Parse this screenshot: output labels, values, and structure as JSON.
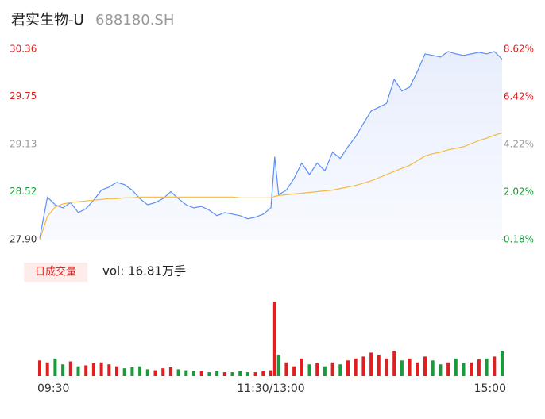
{
  "header": {
    "title": "君实生物-U",
    "code": "688180.SH"
  },
  "chart_data": [
    {
      "type": "line",
      "color": "#5b8ff9",
      "area": true,
      "x": [
        0,
        4,
        8,
        12,
        16,
        20,
        24,
        28,
        32,
        36,
        40,
        44,
        48,
        52,
        56,
        60,
        64,
        68,
        72,
        76,
        80,
        84,
        88,
        92,
        96,
        100,
        104,
        108,
        112,
        116,
        120,
        122,
        124,
        128,
        132,
        136,
        140,
        144,
        148,
        152,
        156,
        160,
        164,
        168,
        172,
        176,
        180,
        184,
        188,
        192,
        196,
        200,
        204,
        208,
        212,
        216,
        220,
        224,
        228,
        232,
        236,
        240
      ],
      "xlim": [
        0,
        240
      ],
      "xticks": [
        {
          "value": 0,
          "label": "09:30"
        },
        {
          "value": 120,
          "label": "11:30/13:00"
        },
        {
          "value": 240,
          "label": "15:00"
        }
      ],
      "ylim": [
        27.9,
        30.36
      ],
      "yticks": [
        30.36,
        29.75,
        29.13,
        28.52,
        {
          "value": 27.9,
          "label": "27.90"
        }
      ],
      "ytick_colors": [
        "#e02020",
        "#e02020",
        "#999999",
        "#1a9a3a",
        "#333333"
      ],
      "y2lim": [
        -0.18,
        8.62
      ],
      "y2ticks": [
        {
          "value": 8.62,
          "label": "8.62%"
        },
        {
          "value": 6.42,
          "label": "6.42%"
        },
        {
          "value": 4.22,
          "label": "4.22%"
        },
        {
          "value": 2.02,
          "label": "2.02%"
        },
        {
          "value": -0.18,
          "label": "-0.18%"
        }
      ],
      "y2tick_colors": [
        "#e02020",
        "#e02020",
        "#999999",
        "#1a9a3a",
        "#1a9a3a"
      ],
      "series": [
        {
          "name": "price",
          "color": "#5b8ff9",
          "values": [
            27.92,
            28.45,
            28.35,
            28.31,
            28.38,
            28.25,
            28.3,
            28.41,
            28.54,
            28.58,
            28.64,
            28.61,
            28.54,
            28.43,
            28.35,
            28.38,
            28.43,
            28.52,
            28.43,
            28.35,
            28.31,
            28.33,
            28.28,
            28.21,
            28.25,
            28.23,
            28.21,
            28.17,
            28.19,
            28.23,
            28.31,
            28.97,
            28.48,
            28.54,
            28.69,
            28.89,
            28.74,
            28.89,
            28.79,
            29.03,
            28.95,
            29.1,
            29.23,
            29.4,
            29.56,
            29.61,
            29.66,
            29.97,
            29.82,
            29.87,
            30.07,
            30.3,
            30.28,
            30.26,
            30.33,
            30.3,
            30.28,
            30.3,
            30.32,
            30.3,
            30.33,
            30.23
          ]
        },
        {
          "name": "average",
          "color": "#f5b940",
          "values": [
            27.9,
            28.2,
            28.32,
            28.36,
            28.38,
            28.39,
            28.4,
            28.41,
            28.42,
            28.43,
            28.43,
            28.44,
            28.44,
            28.45,
            28.45,
            28.45,
            28.45,
            28.45,
            28.45,
            28.45,
            28.45,
            28.45,
            28.45,
            28.45,
            28.45,
            28.45,
            28.44,
            28.44,
            28.44,
            28.44,
            28.44,
            28.46,
            28.47,
            28.48,
            28.49,
            28.5,
            28.51,
            28.52,
            28.53,
            28.54,
            28.56,
            28.58,
            28.6,
            28.63,
            28.66,
            28.7,
            28.74,
            28.78,
            28.82,
            28.86,
            28.92,
            28.98,
            29.01,
            29.03,
            29.06,
            29.08,
            29.1,
            29.14,
            29.18,
            29.21,
            29.25,
            29.28
          ]
        }
      ]
    },
    {
      "type": "volume",
      "legend_label": "日成交量",
      "summary": "vol: 16.81万手",
      "up_color": "#e02020",
      "down_color": "#1a9a3a",
      "ylim": [
        0,
        3900
      ],
      "values": [
        800,
        700,
        900,
        600,
        750,
        500,
        550,
        650,
        700,
        600,
        500,
        400,
        450,
        500,
        350,
        300,
        400,
        450,
        350,
        300,
        250,
        250,
        200,
        250,
        200,
        200,
        250,
        200,
        200,
        250,
        300,
        3800,
        1100,
        700,
        500,
        900,
        600,
        650,
        500,
        700,
        600,
        800,
        900,
        1000,
        1200,
        1100,
        900,
        1300,
        800,
        900,
        700,
        1000,
        800,
        600,
        700,
        900,
        650,
        700,
        850,
        900,
        1000,
        1300
      ]
    }
  ]
}
